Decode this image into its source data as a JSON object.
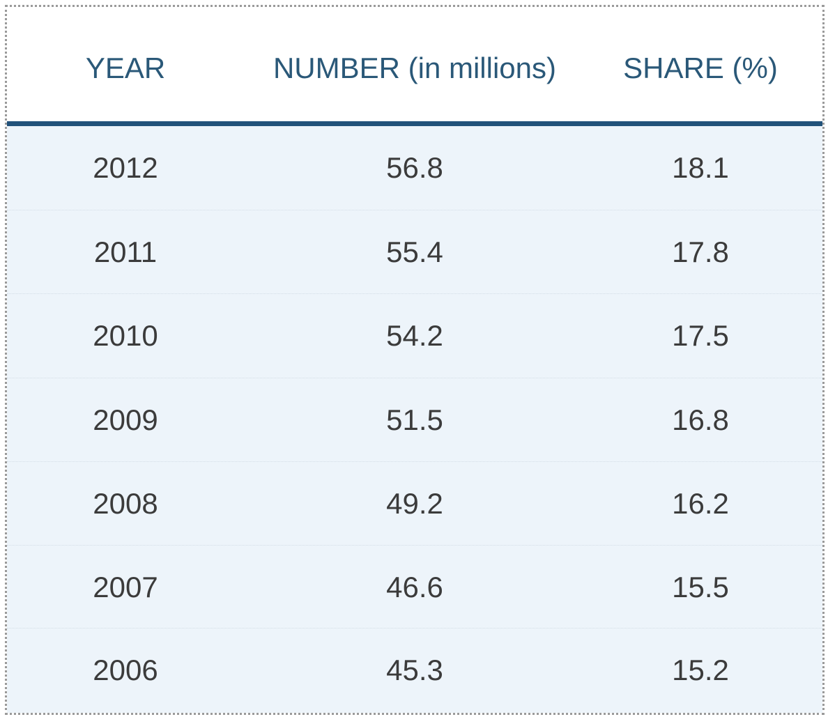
{
  "table": {
    "headers": {
      "year": "YEAR",
      "number": "NUMBER (in millions)",
      "share": "SHARE (%)"
    },
    "rows": [
      {
        "year": "2012",
        "number": "56.8",
        "share": "18.1"
      },
      {
        "year": "2011",
        "number": "55.4",
        "share": "17.8"
      },
      {
        "year": "2010",
        "number": "54.2",
        "share": "17.5"
      },
      {
        "year": "2009",
        "number": "51.5",
        "share": "16.8"
      },
      {
        "year": "2008",
        "number": "49.2",
        "share": "16.2"
      },
      {
        "year": "2007",
        "number": "46.6",
        "share": "15.5"
      },
      {
        "year": "2006",
        "number": "45.3",
        "share": "15.2"
      }
    ]
  },
  "colors": {
    "header_text": "#2a5878",
    "header_rule": "#22527a",
    "row_background": "#edf4fa",
    "cell_text": "#3b3b3b",
    "frame_border": "#9a9a9a"
  }
}
